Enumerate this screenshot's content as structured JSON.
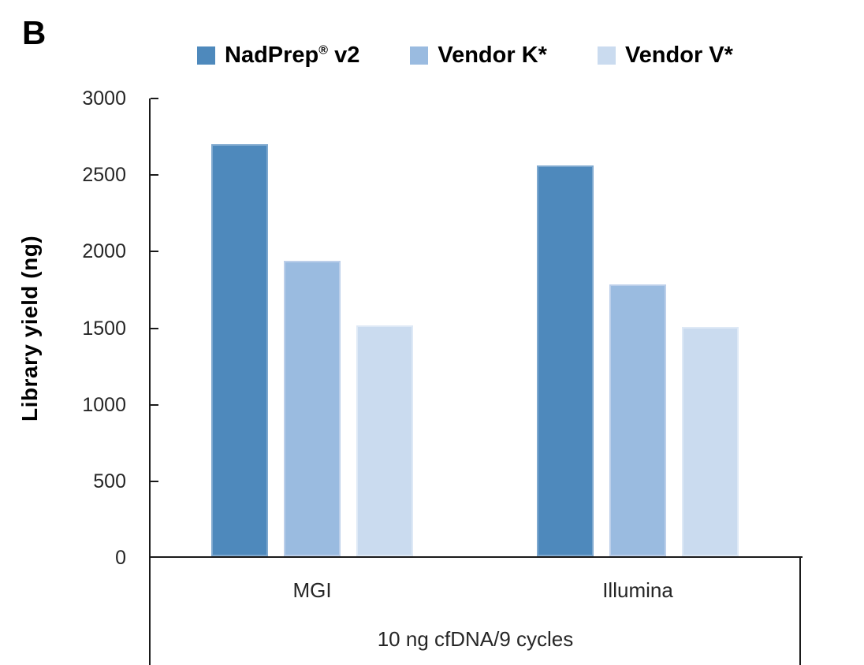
{
  "panel_label": "B",
  "chart_data": {
    "type": "bar",
    "title": "",
    "ylabel": "Library yield (ng)",
    "group_axis_label": "10 ng cfDNA/9 cycles",
    "categories": [
      "MGI",
      "Illumina"
    ],
    "series": [
      {
        "name": "NadPrep® v2",
        "color": "#4E89BC",
        "border_color": "#7FA9CF",
        "values": [
          2690,
          2550
        ]
      },
      {
        "name": "Vendor K*",
        "color": "#9ABBE0",
        "border_color": "#BCCFEA",
        "values": [
          1930,
          1775
        ]
      },
      {
        "name": "Vendor V*",
        "color": "#CADBEF",
        "border_color": "#DEE9F6",
        "values": [
          1510,
          1495
        ]
      }
    ],
    "ylim": [
      0,
      3000
    ],
    "yticks": [
      0,
      500,
      1000,
      1500,
      2000,
      2500,
      3000
    ],
    "legend_position": "top",
    "grid": false,
    "axis_color": "#1a1a1a",
    "text_color": "#262626"
  }
}
